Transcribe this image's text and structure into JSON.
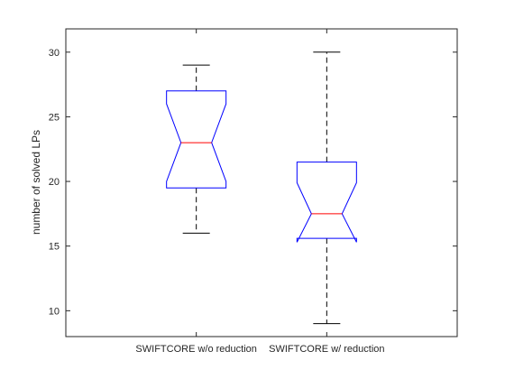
{
  "chart_data": {
    "type": "boxplot",
    "title": "",
    "xlabel": "",
    "ylabel": "number of solved LPs",
    "categories": [
      "SWIFTCORE w/o reduction",
      "SWIFTCORE w/ reduction"
    ],
    "boxes": [
      {
        "whisker_low": 16,
        "q1": 19.5,
        "median": 23,
        "q3": 27,
        "whisker_high": 29,
        "notch_low": 20,
        "notch_high": 26
      },
      {
        "whisker_low": 9,
        "q1": 15.6,
        "median": 17.5,
        "q3": 21.5,
        "whisker_high": 30,
        "notch_low": 15.3,
        "notch_high": 19.9
      }
    ],
    "ylim": [
      8,
      31.8
    ],
    "yticks": [
      10,
      15,
      20,
      25,
      30
    ],
    "grid": false,
    "colors": {
      "box": "#0000ff",
      "median": "#ff0000",
      "whisker": "#000000",
      "axes": "#262626"
    }
  }
}
